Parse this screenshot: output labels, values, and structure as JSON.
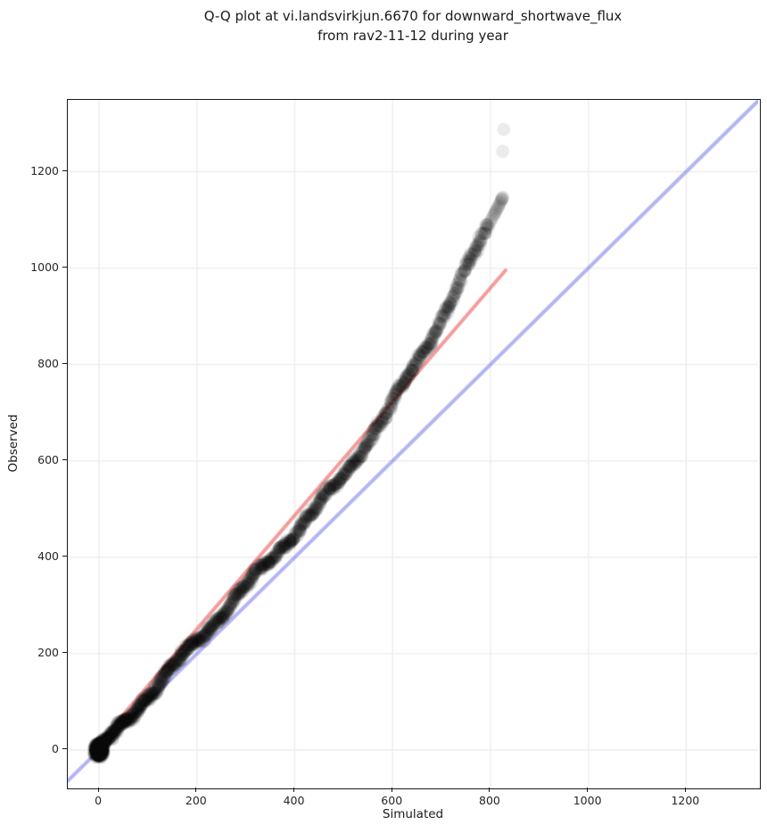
{
  "title": {
    "line1": "Q-Q plot at vi.landsvirkjun.6670 for downward_shortwave_flux",
    "line2": "from rav2-11-12 during year"
  },
  "chart_data": {
    "type": "scatter",
    "subtype": "qq-plot",
    "title": "Q-Q plot at vi.landsvirkjun.6670 for downward_shortwave_flux\nfrom rav2-11-12 during year",
    "xlabel": "Simulated",
    "ylabel": "Observed",
    "xlim": [
      -64,
      1347
    ],
    "ylim": [
      -76,
      1349
    ],
    "xticks": [
      0,
      200,
      400,
      600,
      800,
      1000,
      1200
    ],
    "yticks": [
      0,
      200,
      400,
      600,
      800,
      1000,
      1200
    ],
    "grid": true,
    "grid_color": "#ededed",
    "background": "#ffffff",
    "identity_line": {
      "desc": "y = x reference",
      "color": "rgba(105,105,235,0.5)",
      "width": 4
    },
    "regression_line": {
      "slope": 1.18,
      "intercept": 15,
      "x_range": [
        -8,
        831
      ],
      "color": "rgba(235,75,75,0.55)",
      "width": 4
    },
    "qq_curve": {
      "x": [
        0,
        25,
        50,
        75,
        100,
        125,
        150,
        175,
        200,
        225,
        250,
        275,
        300,
        325,
        350,
        375,
        400,
        425,
        450,
        475,
        500,
        525,
        550,
        575,
        600,
        625,
        650,
        675,
        700,
        725,
        750,
        775,
        800,
        825
      ],
      "y": [
        0,
        28,
        57,
        85,
        113,
        141,
        170,
        198,
        226,
        254,
        283,
        311,
        339,
        367,
        396,
        424,
        452,
        480,
        509,
        538,
        571,
        605,
        642,
        680,
        720,
        761,
        805,
        850,
        896,
        944,
        994,
        1044,
        1096,
        1150
      ]
    },
    "tail_x": [
      797,
      800,
      803,
      806,
      808,
      810,
      812,
      814,
      816,
      818,
      820,
      822,
      823,
      824,
      825
    ],
    "outliers": [
      [
        825,
        1242
      ],
      [
        827,
        1288
      ]
    ],
    "points_style": {
      "color": "#000000",
      "alpha": 0.1,
      "radius_px": 7.5,
      "n_points": 1500,
      "zero_fraction": 0.32,
      "spacing_exponent": 1.35,
      "max_dense_x": 795,
      "wobble_amp": 7,
      "wobble_period": 150,
      "jitter": 3,
      "seed": 42
    }
  }
}
